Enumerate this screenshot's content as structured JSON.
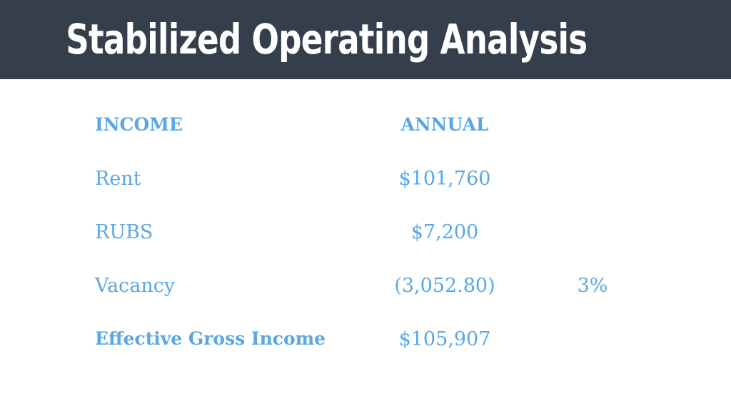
{
  "title": "Stabilized Operating Analysis",
  "table": {
    "headers": {
      "label": "INCOME",
      "value": "ANNUAL"
    },
    "rows": [
      {
        "label": "Rent",
        "value": "$101,760",
        "pct": ""
      },
      {
        "label": "RUBS",
        "value": "$7,200",
        "pct": ""
      },
      {
        "label": "Vacancy",
        "value": "(3,052.80)",
        "pct": "3%"
      },
      {
        "label": "Effective Gross Income",
        "value": "$105,907",
        "pct": ""
      }
    ]
  },
  "colors": {
    "header_bar": "#343f4b",
    "title_text": "#ffffff",
    "accent_text": "#59a7e6",
    "background": "#ffffff"
  }
}
